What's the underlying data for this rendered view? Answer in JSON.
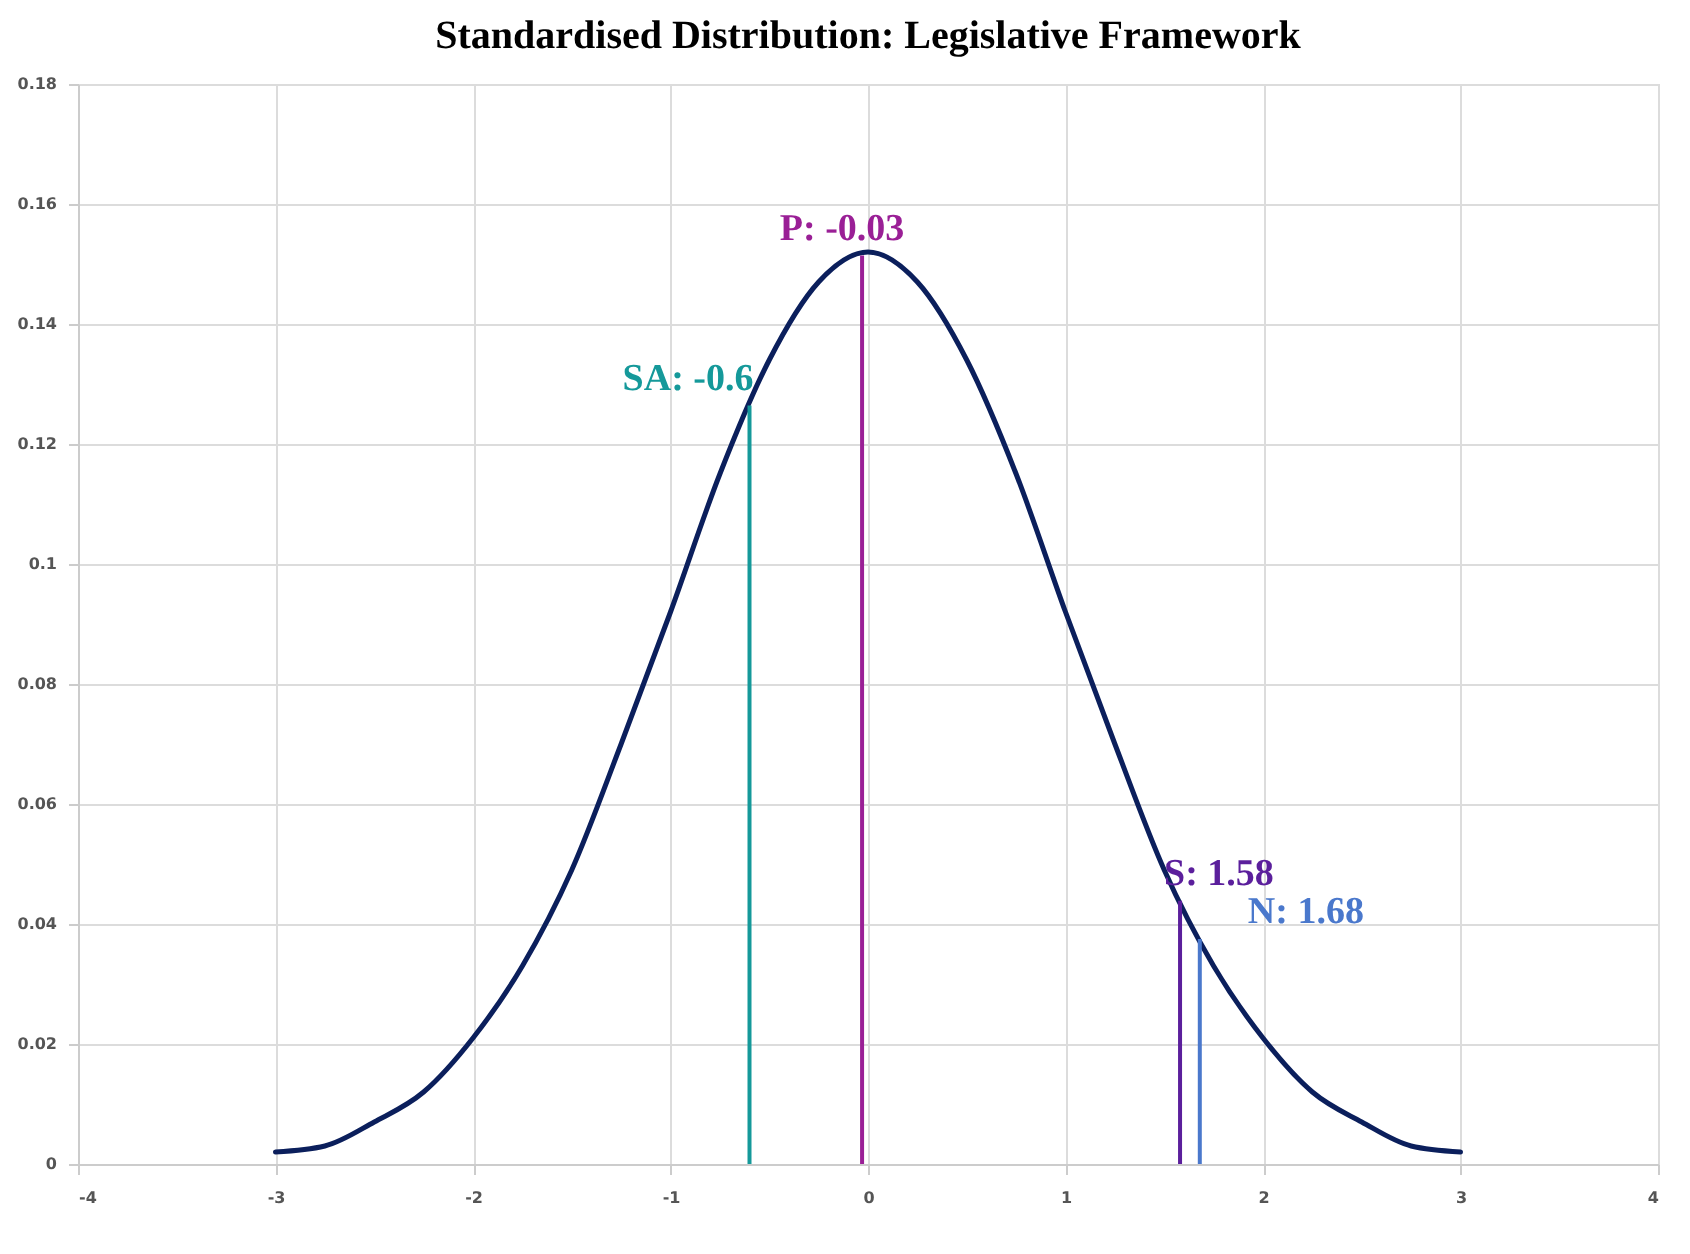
{
  "chart_data": {
    "type": "line",
    "title": "Standardised Distribution: Legislative Framework",
    "x": [
      -3,
      -2.75,
      -2.5,
      -2.25,
      -2,
      -1.75,
      -1.5,
      -1.25,
      -1,
      -0.75,
      -0.5,
      -0.25,
      0,
      0.25,
      0.5,
      0.75,
      1,
      1.25,
      1.5,
      1.75,
      2,
      2.25,
      2.5,
      2.75,
      3
    ],
    "series": [
      {
        "color": "#0b1f5c",
        "values": [
          0.002,
          0.003,
          0.007,
          0.012,
          0.021,
          0.033,
          0.049,
          0.07,
          0.092,
          0.115,
          0.134,
          0.147,
          0.152,
          0.147,
          0.134,
          0.115,
          0.092,
          0.07,
          0.049,
          0.033,
          0.021,
          0.012,
          0.007,
          0.003,
          0.002
        ]
      }
    ],
    "xlim": [
      -4,
      4
    ],
    "xticks": [
      -4,
      -3,
      -2,
      -1,
      0,
      1,
      2,
      3,
      4
    ],
    "ylim": [
      0,
      0.18
    ],
    "yticks": [
      0,
      0.02,
      0.04,
      0.06,
      0.08,
      0.1,
      0.12,
      0.14,
      0.16,
      0.18
    ],
    "grid": true,
    "marker": "none",
    "line_style": "solid",
    "ref_lines": [
      {
        "axis": "x",
        "value": -0.6,
        "label": "SA: -0.6",
        "color": "#15999a"
      },
      {
        "axis": "x",
        "value": -0.03,
        "label": "P: -0.03",
        "color": "#9a1f96"
      },
      {
        "axis": "x",
        "value": 1.58,
        "label": "S: 1.58",
        "color": "#5b1f9c"
      },
      {
        "axis": "x",
        "value": 1.68,
        "label": "N: 1.68",
        "color": "#4a78cc"
      }
    ]
  }
}
